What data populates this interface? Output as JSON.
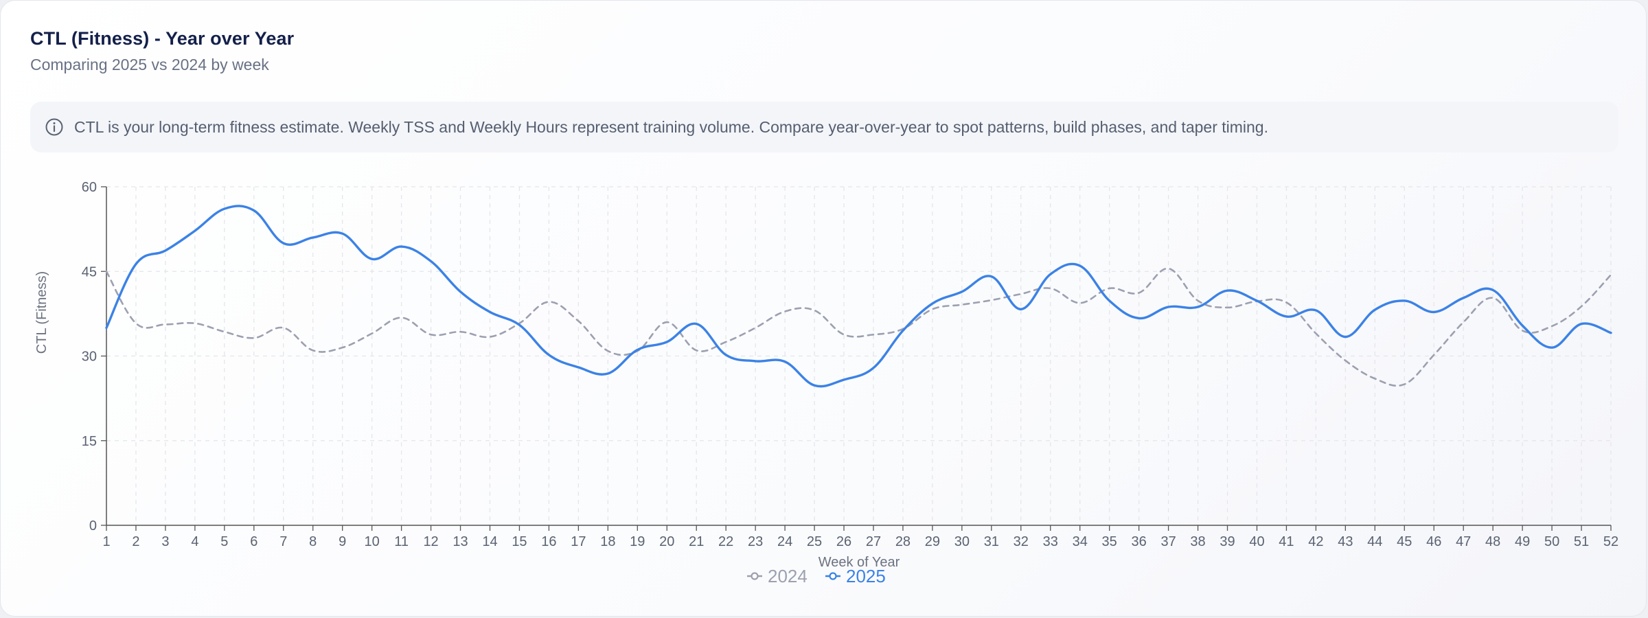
{
  "header": {
    "title": "CTL (Fitness) - Year over Year",
    "subtitle": "Comparing 2025 vs 2024 by week"
  },
  "info": {
    "icon": "info-icon",
    "text": "CTL is your long-term fitness estimate. Weekly TSS and Weekly Hours represent training volume. Compare year-over-year to spot patterns, build phases, and taper timing."
  },
  "chart_data": {
    "type": "line",
    "title": "",
    "xlabel": "Week of Year",
    "ylabel": "CTL (Fitness)",
    "ylim": [
      0,
      60
    ],
    "yticks": [
      0,
      15,
      30,
      45,
      60
    ],
    "x": [
      1,
      2,
      3,
      4,
      5,
      6,
      7,
      8,
      9,
      10,
      11,
      12,
      13,
      14,
      15,
      16,
      17,
      18,
      19,
      20,
      21,
      22,
      23,
      24,
      25,
      26,
      27,
      28,
      29,
      30,
      31,
      32,
      33,
      34,
      35,
      36,
      37,
      38,
      39,
      40,
      41,
      42,
      43,
      44,
      45,
      46,
      47,
      48,
      49,
      50,
      51,
      52
    ],
    "grid": true,
    "legend_position": "bottom-center",
    "series": [
      {
        "name": "2024",
        "color": "#9ca0b0",
        "dashed": true,
        "values": [
          45,
          35.8,
          35.6,
          35.8,
          34.3,
          33.2,
          35.0,
          31.0,
          31.5,
          34.0,
          36.8,
          33.8,
          34.3,
          33.4,
          35.8,
          39.6,
          36.2,
          30.9,
          30.9,
          36.0,
          31.0,
          32.5,
          35.0,
          37.9,
          38.1,
          33.8,
          33.8,
          34.8,
          38.3,
          39.1,
          39.9,
          41.0,
          42.0,
          39.4,
          42.0,
          41.2,
          45.5,
          39.8,
          38.6,
          39.7,
          39.5,
          34.0,
          29.2,
          26.0,
          25.0,
          30.2,
          36.0,
          40.3,
          34.5,
          35.3,
          38.8,
          44.4
        ]
      },
      {
        "name": "2025",
        "color": "#3b82e6",
        "dashed": false,
        "values": [
          35,
          46.3,
          48.7,
          52.2,
          56.1,
          55.8,
          50.0,
          51.0,
          51.7,
          47.2,
          49.4,
          46.8,
          41.4,
          37.8,
          35.5,
          30.2,
          28.0,
          26.9,
          31.1,
          32.5,
          35.7,
          30.2,
          29.1,
          29.0,
          24.8,
          25.8,
          27.9,
          34.5,
          39.3,
          41.4,
          44.1,
          38.3,
          44.5,
          46.0,
          39.8,
          36.7,
          38.7,
          38.7,
          41.6,
          39.8,
          37.0,
          38.1,
          33.4,
          38.2,
          39.8,
          37.8,
          40.3,
          41.7,
          35.4,
          31.5,
          35.7,
          34.1
        ]
      }
    ]
  }
}
